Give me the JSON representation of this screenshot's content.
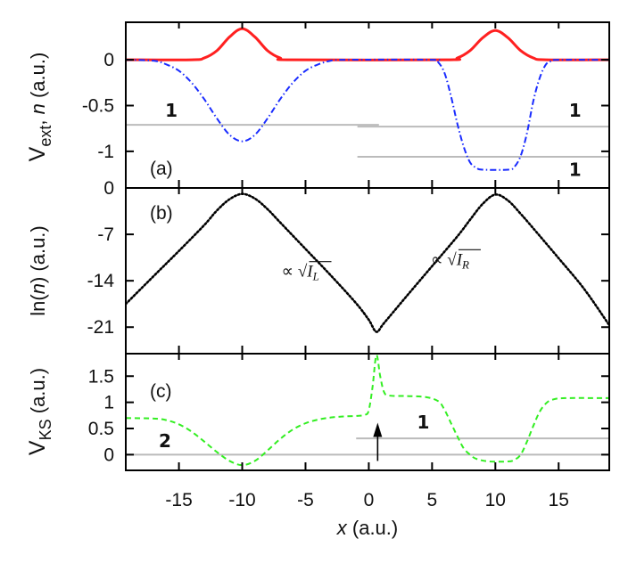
{
  "chart_data": [
    {
      "panel": "(a)",
      "type": "line",
      "ylabel": {
        "main": "V",
        "sub": "ext",
        "sep": ", ",
        "italic": "n",
        "tail": " (a.u.)"
      },
      "xlim": [
        -19.2,
        19
      ],
      "ylim": [
        -1.4,
        0.41
      ],
      "yticks": [
        0,
        -0.5,
        -1
      ],
      "yticklabels": [
        "0",
        "-0.5",
        "-1"
      ],
      "series": [
        {
          "key": "density",
          "color": "#ff2020",
          "style": "solid",
          "points": [
            [
              -19.2,
              0
            ],
            [
              -14,
              0
            ],
            [
              -13,
              0.02
            ],
            [
              -12,
              0.1
            ],
            [
              -11,
              0.25
            ],
            [
              -10,
              0.34
            ],
            [
              -9,
              0.25
            ],
            [
              -8,
              0.1
            ],
            [
              -7,
              0.02
            ],
            [
              -6,
              0
            ],
            [
              6,
              0
            ],
            [
              7,
              0.02
            ],
            [
              8,
              0.1
            ],
            [
              9,
              0.24
            ],
            [
              10,
              0.32
            ],
            [
              11,
              0.24
            ],
            [
              12,
              0.1
            ],
            [
              13,
              0.02
            ],
            [
              14,
              0
            ],
            [
              19,
              0
            ]
          ]
        },
        {
          "key": "external-potential",
          "color": "#1a2cff",
          "style": "dash-dot",
          "points": [
            [
              -19.2,
              0
            ],
            [
              -17,
              -0.01
            ],
            [
              -16,
              -0.05
            ],
            [
              -15,
              -0.12
            ],
            [
              -14,
              -0.25
            ],
            [
              -13,
              -0.43
            ],
            [
              -12,
              -0.64
            ],
            [
              -11,
              -0.82
            ],
            [
              -10,
              -0.89
            ],
            [
              -9,
              -0.82
            ],
            [
              -8,
              -0.64
            ],
            [
              -7,
              -0.43
            ],
            [
              -6,
              -0.25
            ],
            [
              -5,
              -0.12
            ],
            [
              -4,
              -0.05
            ],
            [
              -3,
              -0.01
            ],
            [
              -2,
              0
            ],
            [
              5,
              0
            ],
            [
              5.5,
              -0.03
            ],
            [
              6,
              -0.15
            ],
            [
              6.5,
              -0.4
            ],
            [
              7,
              -0.7
            ],
            [
              7.5,
              -0.95
            ],
            [
              8,
              -1.12
            ],
            [
              8.5,
              -1.18
            ],
            [
              9,
              -1.2
            ],
            [
              11,
              -1.2
            ],
            [
              11.5,
              -1.17
            ],
            [
              12,
              -1.05
            ],
            [
              12.5,
              -0.8
            ],
            [
              13,
              -0.45
            ],
            [
              13.5,
              -0.2
            ],
            [
              14,
              -0.05
            ],
            [
              14.5,
              -0.01
            ],
            [
              15,
              0
            ],
            [
              19,
              0
            ]
          ]
        }
      ],
      "levels": [
        {
          "y": -0.71,
          "from": -19.2,
          "to": 0.8
        },
        {
          "y": -0.73,
          "from": -0.9,
          "to": 19
        },
        {
          "y": -1.06,
          "from": -0.9,
          "to": 19
        }
      ],
      "level_labels": [
        {
          "text": "1",
          "x": -15.6,
          "y": -0.62
        },
        {
          "text": "1",
          "x": 16.3,
          "y": -0.62
        },
        {
          "text": "1",
          "x": 16.3,
          "y": -1.27
        }
      ]
    },
    {
      "panel": "(b)",
      "type": "line",
      "ylabel": {
        "pre": "ln(",
        "italic": "n",
        "tail": ") (a.u.)"
      },
      "xlim": [
        -19.2,
        19
      ],
      "ylim": [
        -25,
        0
      ],
      "yticks": [
        0,
        -7,
        -14,
        -21
      ],
      "yticklabels": [
        "0",
        "-7",
        "-14",
        "-21"
      ],
      "series": [
        {
          "key": "log-density",
          "color": "#000000",
          "style": "dotted",
          "points": [
            [
              -19.2,
              -17.5
            ],
            [
              -17,
              -13.3
            ],
            [
              -15,
              -9.5
            ],
            [
              -13,
              -5.6
            ],
            [
              -12,
              -3.4
            ],
            [
              -11,
              -1.7
            ],
            [
              -10,
              -0.9
            ],
            [
              -9,
              -1.6
            ],
            [
              -8,
              -3.2
            ],
            [
              -7,
              -5.2
            ],
            [
              -5,
              -9.2
            ],
            [
              -3,
              -13.2
            ],
            [
              -1,
              -17.4
            ],
            [
              0,
              -19.9
            ],
            [
              0.6,
              -21.7
            ],
            [
              1.2,
              -20.4
            ],
            [
              3,
              -16.3
            ],
            [
              5,
              -11.8
            ],
            [
              7,
              -7.3
            ],
            [
              8,
              -4.8
            ],
            [
              9,
              -2.4
            ],
            [
              10,
              -1.0
            ],
            [
              11,
              -1.9
            ],
            [
              12,
              -3.9
            ],
            [
              13,
              -6.1
            ],
            [
              15,
              -10.6
            ],
            [
              17,
              -15.2
            ],
            [
              19,
              -20.7
            ]
          ]
        }
      ],
      "annotations": [
        {
          "prefix": "∝",
          "var": "I",
          "sub": "L",
          "x": -6.9,
          "y": -13.4
        },
        {
          "prefix": "∝",
          "var": "I",
          "sub": "R",
          "x": 4.9,
          "y": -11.6
        }
      ]
    },
    {
      "panel": "(c)",
      "type": "line",
      "ylabel": {
        "main": "V",
        "sub": "KS",
        "tail": " (a.u.)"
      },
      "xlabel": {
        "italic": "x",
        "tail": " (a.u.)"
      },
      "xlim": [
        -19.2,
        19
      ],
      "ylim": [
        -0.3,
        1.93
      ],
      "xticks": [
        -15,
        -10,
        -5,
        0,
        5,
        10,
        15
      ],
      "xticklabels": [
        "-15",
        "-10",
        "-5",
        "0",
        "5",
        "10",
        "15"
      ],
      "yticks": [
        0,
        0.5,
        1,
        1.5
      ],
      "yticklabels": [
        "0",
        "0.5",
        "1",
        "1.5"
      ],
      "series": [
        {
          "key": "ks-potential",
          "color": "#33ee22",
          "style": "dashed",
          "points": [
            [
              -19.2,
              0.7
            ],
            [
              -17,
              0.69
            ],
            [
              -16,
              0.66
            ],
            [
              -15,
              0.58
            ],
            [
              -14,
              0.44
            ],
            [
              -13,
              0.25
            ],
            [
              -12,
              0.05
            ],
            [
              -11,
              -0.12
            ],
            [
              -10,
              -0.2
            ],
            [
              -9,
              -0.12
            ],
            [
              -8,
              0.08
            ],
            [
              -7,
              0.3
            ],
            [
              -6,
              0.48
            ],
            [
              -5,
              0.6
            ],
            [
              -4,
              0.67
            ],
            [
              -3,
              0.71
            ],
            [
              -2,
              0.73
            ],
            [
              -1,
              0.74
            ],
            [
              -0.3,
              0.76
            ],
            [
              0,
              0.85
            ],
            [
              0.3,
              1.3
            ],
            [
              0.6,
              1.9
            ],
            [
              0.9,
              1.5
            ],
            [
              1.2,
              1.2
            ],
            [
              1.6,
              1.13
            ],
            [
              3,
              1.12
            ],
            [
              4.5,
              1.1
            ],
            [
              5.5,
              1.02
            ],
            [
              6,
              0.85
            ],
            [
              6.5,
              0.6
            ],
            [
              7,
              0.35
            ],
            [
              7.5,
              0.12
            ],
            [
              8,
              0
            ],
            [
              8.5,
              -0.08
            ],
            [
              9.5,
              -0.13
            ],
            [
              11,
              -0.13
            ],
            [
              11.5,
              -0.1
            ],
            [
              12,
              0
            ],
            [
              12.5,
              0.25
            ],
            [
              13,
              0.55
            ],
            [
              13.5,
              0.82
            ],
            [
              14,
              0.98
            ],
            [
              14.5,
              1.05
            ],
            [
              15.5,
              1.08
            ],
            [
              19,
              1.08
            ]
          ]
        }
      ],
      "levels": [
        {
          "y": 0,
          "from": -19.2,
          "to": 19
        },
        {
          "y": 0.31,
          "from": -1.0,
          "to": 19
        }
      ],
      "level_labels": [
        {
          "text": "2",
          "x": -16.1,
          "y": 0.14
        },
        {
          "text": "1",
          "x": 4.3,
          "y": 0.5
        }
      ],
      "arrow": {
        "x": 0.7,
        "from": -0.12,
        "to": 0.61
      }
    }
  ],
  "colors": {
    "level": "#bbbbbb",
    "axis": "#000000"
  }
}
